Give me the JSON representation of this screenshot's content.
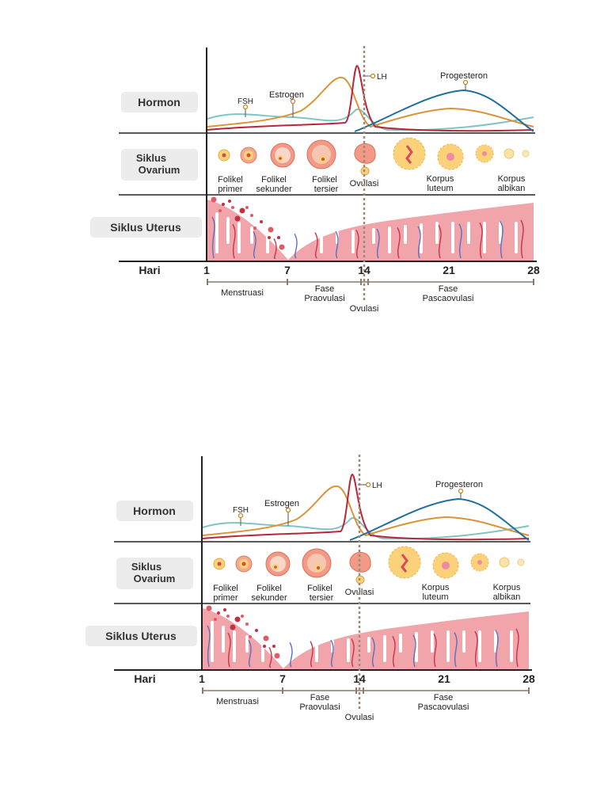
{
  "diagrams": [
    {
      "row_labels": {
        "hormone": "Hormon",
        "ovary_1": "Siklus",
        "ovary_2": "Ovarium",
        "uterus": "Siklus Uterus",
        "days": "Hari"
      },
      "hormones": {
        "fsh": "FSH",
        "estrogen": "Estrogen",
        "lh": "LH",
        "progesterone": "Progesteron"
      },
      "follicles": {
        "primer_1": "Folikel",
        "primer_2": "primer",
        "sekunder_1": "Folikel",
        "sekunder_2": "sekunder",
        "tersier_1": "Folikel",
        "tersier_2": "tersier",
        "ovulasi": "Ovulasi",
        "luteum_1": "Korpus",
        "luteum_2": "luteum",
        "albikan_1": "Korpus",
        "albikan_2": "albikan"
      },
      "day_ticks": [
        "1",
        "7",
        "14",
        "21",
        "28"
      ],
      "phases": {
        "menstruasi": "Menstruasi",
        "pra_1": "Fase",
        "pra_2": "Praovulasi",
        "pasca_1": "Fase",
        "pasca_2": "Pascaovulasi",
        "ovulasi": "Ovulasi"
      }
    },
    {
      "row_labels": {
        "hormone": "Hormon",
        "ovary_1": "Siklus",
        "ovary_2": "Ovarium",
        "uterus": "Siklus Uterus",
        "days": "Hari"
      },
      "hormones": {
        "fsh": "FSH",
        "estrogen": "Estrogen",
        "lh": "LH",
        "progesterone": "Progesteron"
      },
      "follicles": {
        "primer_1": "Folikel",
        "primer_2": "primer",
        "sekunder_1": "Folikel",
        "sekunder_2": "sekunder",
        "tersier_1": "Folikel",
        "tersier_2": "tersier",
        "ovulasi": "Ovulasi",
        "luteum_1": "Korpus",
        "luteum_2": "luteum",
        "albikan_1": "Korpus",
        "albikan_2": "albikan"
      },
      "day_ticks": [
        "1",
        "7",
        "14",
        "21",
        "28"
      ],
      "phases": {
        "menstruasi": "Menstruasi",
        "pra_1": "Fase",
        "pra_2": "Praovulasi",
        "pasca_1": "Fase",
        "pasca_2": "Pascaovulasi",
        "ovulasi": "Ovulasi"
      }
    }
  ],
  "colors": {
    "fsh": "#7fc4c2",
    "estrogen": "#d9943a",
    "lh": "#b8263a",
    "progesterone": "#1f6f9e",
    "uterus": "#f1a4aa",
    "vessel_blue": "#5a6fc0",
    "vessel_red": "#c8344a",
    "ovulation_line": "#9c8a7a",
    "label_bg": "#ececec"
  }
}
